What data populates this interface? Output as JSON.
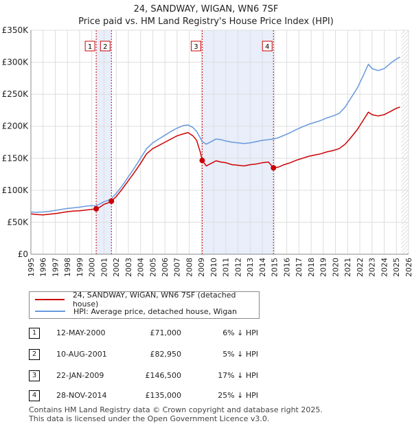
{
  "header": {
    "title": "24, SANDWAY, WIGAN, WN6 7SF",
    "subtitle": "Price paid vs. HM Land Registry's House Price Index (HPI)"
  },
  "colors": {
    "property": "#cc0000",
    "hpi": "#6699dd",
    "shade": "#e8eefa"
  },
  "chart_data": {
    "type": "line",
    "title": "24, SANDWAY, WIGAN, WN6 7SF",
    "subtitle": "Price paid vs. HM Land Registry's House Price Index (HPI)",
    "xlim": [
      1995,
      2026
    ],
    "ylim": [
      0,
      350000
    ],
    "x_ticks": [
      1995,
      1996,
      1997,
      1998,
      1999,
      2000,
      2001,
      2002,
      2003,
      2004,
      2005,
      2006,
      2007,
      2008,
      2009,
      2010,
      2011,
      2012,
      2013,
      2014,
      2015,
      2016,
      2017,
      2018,
      2019,
      2020,
      2021,
      2022,
      2023,
      2024,
      2025,
      2026
    ],
    "y_ticks": [
      {
        "value": 0,
        "label": "£0"
      },
      {
        "value": 50000,
        "label": "£50K"
      },
      {
        "value": 100000,
        "label": "£100K"
      },
      {
        "value": 150000,
        "label": "£150K"
      },
      {
        "value": 200000,
        "label": "£200K"
      },
      {
        "value": 250000,
        "label": "£250K"
      },
      {
        "value": 300000,
        "label": "£300K"
      },
      {
        "value": 350000,
        "label": "£350K"
      }
    ],
    "series": [
      {
        "name": "24, SANDWAY, WIGAN, WN6 7SF (detached house)",
        "color": "#cc0000",
        "points": [
          [
            1995.0,
            63000
          ],
          [
            1995.5,
            62000
          ],
          [
            1996.0,
            61500
          ],
          [
            1996.5,
            62500
          ],
          [
            1997.0,
            63500
          ],
          [
            1997.5,
            65000
          ],
          [
            1998.0,
            66500
          ],
          [
            1998.5,
            67500
          ],
          [
            1999.0,
            68000
          ],
          [
            1999.5,
            69000
          ],
          [
            2000.0,
            70000
          ],
          [
            2000.36,
            71000
          ],
          [
            2000.7,
            74000
          ],
          [
            2001.0,
            78000
          ],
          [
            2001.3,
            80000
          ],
          [
            2001.61,
            82950
          ],
          [
            2002.0,
            90000
          ],
          [
            2002.5,
            102000
          ],
          [
            2003.0,
            115000
          ],
          [
            2003.5,
            128000
          ],
          [
            2004.0,
            142000
          ],
          [
            2004.5,
            157000
          ],
          [
            2005.0,
            165000
          ],
          [
            2005.5,
            170000
          ],
          [
            2006.0,
            175000
          ],
          [
            2006.5,
            180000
          ],
          [
            2007.0,
            185000
          ],
          [
            2007.5,
            188000
          ],
          [
            2007.9,
            190000
          ],
          [
            2008.3,
            185000
          ],
          [
            2008.6,
            178000
          ],
          [
            2008.9,
            160000
          ],
          [
            2009.06,
            146500
          ],
          [
            2009.4,
            138000
          ],
          [
            2009.8,
            142000
          ],
          [
            2010.2,
            146000
          ],
          [
            2010.6,
            144000
          ],
          [
            2011.0,
            143000
          ],
          [
            2011.5,
            140000
          ],
          [
            2012.0,
            139000
          ],
          [
            2012.5,
            138000
          ],
          [
            2013.0,
            140000
          ],
          [
            2013.5,
            141000
          ],
          [
            2014.0,
            143000
          ],
          [
            2014.5,
            144000
          ],
          [
            2014.91,
            135000
          ],
          [
            2015.3,
            136000
          ],
          [
            2015.8,
            140000
          ],
          [
            2016.3,
            143000
          ],
          [
            2016.8,
            147000
          ],
          [
            2017.3,
            150000
          ],
          [
            2017.8,
            153000
          ],
          [
            2018.3,
            155000
          ],
          [
            2018.8,
            157000
          ],
          [
            2019.3,
            160000
          ],
          [
            2019.8,
            162000
          ],
          [
            2020.3,
            165000
          ],
          [
            2020.8,
            172000
          ],
          [
            2021.3,
            183000
          ],
          [
            2021.8,
            195000
          ],
          [
            2022.3,
            210000
          ],
          [
            2022.7,
            222000
          ],
          [
            2023.0,
            218000
          ],
          [
            2023.5,
            216000
          ],
          [
            2024.0,
            218000
          ],
          [
            2024.5,
            223000
          ],
          [
            2025.0,
            228000
          ],
          [
            2025.3,
            230000
          ]
        ]
      },
      {
        "name": "HPI: Average price, detached house, Wigan",
        "color": "#6699dd",
        "points": [
          [
            1995.0,
            66000
          ],
          [
            1995.5,
            65500
          ],
          [
            1996.0,
            66000
          ],
          [
            1996.5,
            67000
          ],
          [
            1997.0,
            68500
          ],
          [
            1997.5,
            70000
          ],
          [
            1998.0,
            71500
          ],
          [
            1998.5,
            72500
          ],
          [
            1999.0,
            73500
          ],
          [
            1999.5,
            75000
          ],
          [
            2000.0,
            76000
          ],
          [
            2000.36,
            75500
          ],
          [
            2000.7,
            79000
          ],
          [
            2001.0,
            82000
          ],
          [
            2001.3,
            84000
          ],
          [
            2001.61,
            87000
          ],
          [
            2002.0,
            95000
          ],
          [
            2002.5,
            107000
          ],
          [
            2003.0,
            121000
          ],
          [
            2003.5,
            135000
          ],
          [
            2004.0,
            150000
          ],
          [
            2004.5,
            165000
          ],
          [
            2005.0,
            174000
          ],
          [
            2005.5,
            180000
          ],
          [
            2006.0,
            186000
          ],
          [
            2006.5,
            192000
          ],
          [
            2007.0,
            197000
          ],
          [
            2007.5,
            201000
          ],
          [
            2007.9,
            202000
          ],
          [
            2008.3,
            198000
          ],
          [
            2008.6,
            192000
          ],
          [
            2008.9,
            182000
          ],
          [
            2009.06,
            176000
          ],
          [
            2009.4,
            172000
          ],
          [
            2009.8,
            176000
          ],
          [
            2010.2,
            180000
          ],
          [
            2010.6,
            179000
          ],
          [
            2011.0,
            177000
          ],
          [
            2011.5,
            175000
          ],
          [
            2012.0,
            174000
          ],
          [
            2012.5,
            173000
          ],
          [
            2013.0,
            174000
          ],
          [
            2013.5,
            176000
          ],
          [
            2014.0,
            178000
          ],
          [
            2014.5,
            179000
          ],
          [
            2014.91,
            180000
          ],
          [
            2015.3,
            182000
          ],
          [
            2015.8,
            186000
          ],
          [
            2016.3,
            190000
          ],
          [
            2016.8,
            195000
          ],
          [
            2017.3,
            199000
          ],
          [
            2017.8,
            203000
          ],
          [
            2018.3,
            206000
          ],
          [
            2018.8,
            209000
          ],
          [
            2019.3,
            213000
          ],
          [
            2019.8,
            216000
          ],
          [
            2020.3,
            220000
          ],
          [
            2020.8,
            230000
          ],
          [
            2021.3,
            245000
          ],
          [
            2021.8,
            260000
          ],
          [
            2022.3,
            280000
          ],
          [
            2022.7,
            297000
          ],
          [
            2023.0,
            290000
          ],
          [
            2023.5,
            287000
          ],
          [
            2024.0,
            290000
          ],
          [
            2024.5,
            298000
          ],
          [
            2025.0,
            305000
          ],
          [
            2025.3,
            308000
          ]
        ]
      }
    ],
    "sales": [
      {
        "id": "1",
        "x": 2000.36,
        "price": 71000
      },
      {
        "id": "2",
        "x": 2001.61,
        "price": 82950
      },
      {
        "id": "3",
        "x": 2009.06,
        "price": 146500
      },
      {
        "id": "4",
        "x": 2014.91,
        "price": 135000
      }
    ],
    "shaded_ranges": [
      [
        2000.36,
        2001.61
      ],
      [
        2009.06,
        2014.91
      ]
    ],
    "future_hatch_start": 2025.4
  },
  "legend": {
    "property_label": "24, SANDWAY, WIGAN, WN6 7SF (detached house)",
    "hpi_label": "HPI: Average price, detached house, Wigan"
  },
  "sales_table": [
    {
      "num": "1",
      "date": "12-MAY-2000",
      "price": "£71,000",
      "pct": "6% ↓ HPI"
    },
    {
      "num": "2",
      "date": "10-AUG-2001",
      "price": "£82,950",
      "pct": "5% ↓ HPI"
    },
    {
      "num": "3",
      "date": "22-JAN-2009",
      "price": "£146,500",
      "pct": "17% ↓ HPI"
    },
    {
      "num": "4",
      "date": "28-NOV-2014",
      "price": "£135,000",
      "pct": "25% ↓ HPI"
    }
  ],
  "footer": {
    "line1": "Contains HM Land Registry data © Crown copyright and database right 2025.",
    "line2": "This data is licensed under the Open Government Licence v3.0."
  }
}
